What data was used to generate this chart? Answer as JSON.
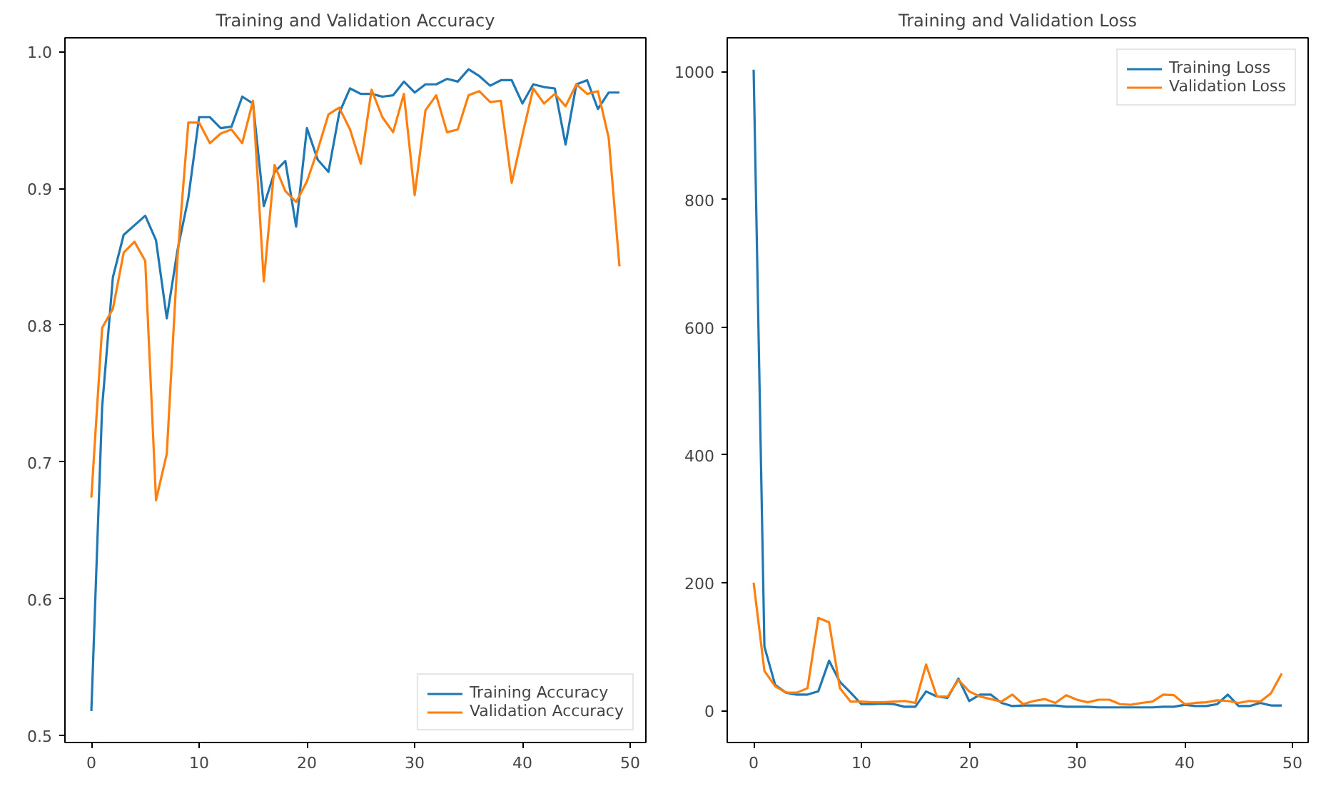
{
  "chart_data": [
    {
      "type": "line",
      "title": "Training and Validation Accuracy",
      "x": [
        0,
        1,
        2,
        3,
        4,
        5,
        6,
        7,
        8,
        9,
        10,
        11,
        12,
        13,
        14,
        15,
        16,
        17,
        18,
        19,
        20,
        21,
        22,
        23,
        24,
        25,
        26,
        27,
        28,
        29,
        30,
        31,
        32,
        33,
        34,
        35,
        36,
        37,
        38,
        39,
        40,
        41,
        42,
        43,
        44,
        45,
        46,
        47,
        48,
        49
      ],
      "series": [
        {
          "name": "Training Accuracy",
          "color": "#1f77b4",
          "values": [
            0.518,
            0.74,
            0.835,
            0.866,
            0.873,
            0.88,
            0.862,
            0.805,
            0.855,
            0.893,
            0.952,
            0.952,
            0.944,
            0.945,
            0.967,
            0.962,
            0.887,
            0.912,
            0.92,
            0.872,
            0.944,
            0.921,
            0.912,
            0.955,
            0.973,
            0.969,
            0.969,
            0.967,
            0.968,
            0.978,
            0.97,
            0.976,
            0.976,
            0.98,
            0.978,
            0.987,
            0.982,
            0.975,
            0.979,
            0.979,
            0.962,
            0.976,
            0.974,
            0.973,
            0.932,
            0.976,
            0.979,
            0.958,
            0.97,
            0.97
          ]
        },
        {
          "name": "Validation Accuracy",
          "color": "#ff7f0e",
          "values": [
            0.674,
            0.798,
            0.812,
            0.853,
            0.861,
            0.847,
            0.672,
            0.706,
            0.85,
            0.948,
            0.948,
            0.933,
            0.94,
            0.943,
            0.933,
            0.964,
            0.832,
            0.917,
            0.898,
            0.89,
            0.905,
            0.928,
            0.954,
            0.959,
            0.943,
            0.918,
            0.972,
            0.952,
            0.941,
            0.969,
            0.895,
            0.957,
            0.968,
            0.941,
            0.943,
            0.968,
            0.971,
            0.963,
            0.964,
            0.904,
            0.939,
            0.973,
            0.962,
            0.969,
            0.96,
            0.976,
            0.969,
            0.971,
            0.937,
            0.843
          ]
        }
      ],
      "xlim": [
        -2.45,
        51.45
      ],
      "xticks": [
        0,
        10,
        20,
        30,
        40,
        50
      ],
      "ylim": [
        0.495,
        1.01
      ],
      "yticks": [
        {
          "value": 0.5,
          "label": "0.5"
        },
        {
          "value": 0.6,
          "label": "0.6"
        },
        {
          "value": 0.7,
          "label": "0.7"
        },
        {
          "value": 0.8,
          "label": "0.8"
        },
        {
          "value": 0.9,
          "label": "0.9"
        },
        {
          "value": 1.0,
          "label": "1.0"
        }
      ],
      "legend": "bottom right",
      "grid": false,
      "line_style": "solid"
    },
    {
      "type": "line",
      "title": "Training and Validation Loss",
      "x": [
        0,
        1,
        2,
        3,
        4,
        5,
        6,
        7,
        8,
        9,
        10,
        11,
        12,
        13,
        14,
        15,
        16,
        17,
        18,
        19,
        20,
        21,
        22,
        23,
        24,
        25,
        26,
        27,
        28,
        29,
        30,
        31,
        32,
        33,
        34,
        35,
        36,
        37,
        38,
        39,
        40,
        41,
        42,
        43,
        44,
        45,
        46,
        47,
        48,
        49
      ],
      "series": [
        {
          "name": "Training Loss",
          "color": "#1f77b4",
          "values": [
            1003,
            100,
            40,
            28,
            25,
            25,
            30,
            78,
            45,
            28,
            10,
            10,
            11,
            10,
            6,
            6,
            30,
            22,
            20,
            50,
            15,
            25,
            25,
            12,
            7,
            8,
            8,
            8,
            8,
            6,
            6,
            6,
            5,
            5,
            5,
            5,
            5,
            5,
            6,
            6,
            9,
            7,
            7,
            10,
            25,
            7,
            7,
            12,
            8,
            8
          ]
        },
        {
          "name": "Validation Loss",
          "color": "#ff7f0e",
          "values": [
            200,
            62,
            38,
            28,
            28,
            35,
            145,
            138,
            35,
            14,
            14,
            13,
            13,
            14,
            15,
            12,
            72,
            22,
            22,
            48,
            30,
            22,
            18,
            14,
            25,
            10,
            15,
            18,
            12,
            24,
            17,
            13,
            17,
            17,
            10,
            9,
            12,
            14,
            25,
            24,
            10,
            12,
            13,
            16,
            15,
            12,
            15,
            14,
            27,
            58
          ]
        }
      ],
      "xlim": [
        -2.45,
        51.45
      ],
      "xticks": [
        0,
        10,
        20,
        30,
        40,
        50
      ],
      "ylim": [
        -50,
        1053
      ],
      "yticks": [
        0,
        200,
        400,
        600,
        800,
        1000
      ],
      "legend": "top right",
      "grid": false,
      "line_style": "solid"
    }
  ]
}
